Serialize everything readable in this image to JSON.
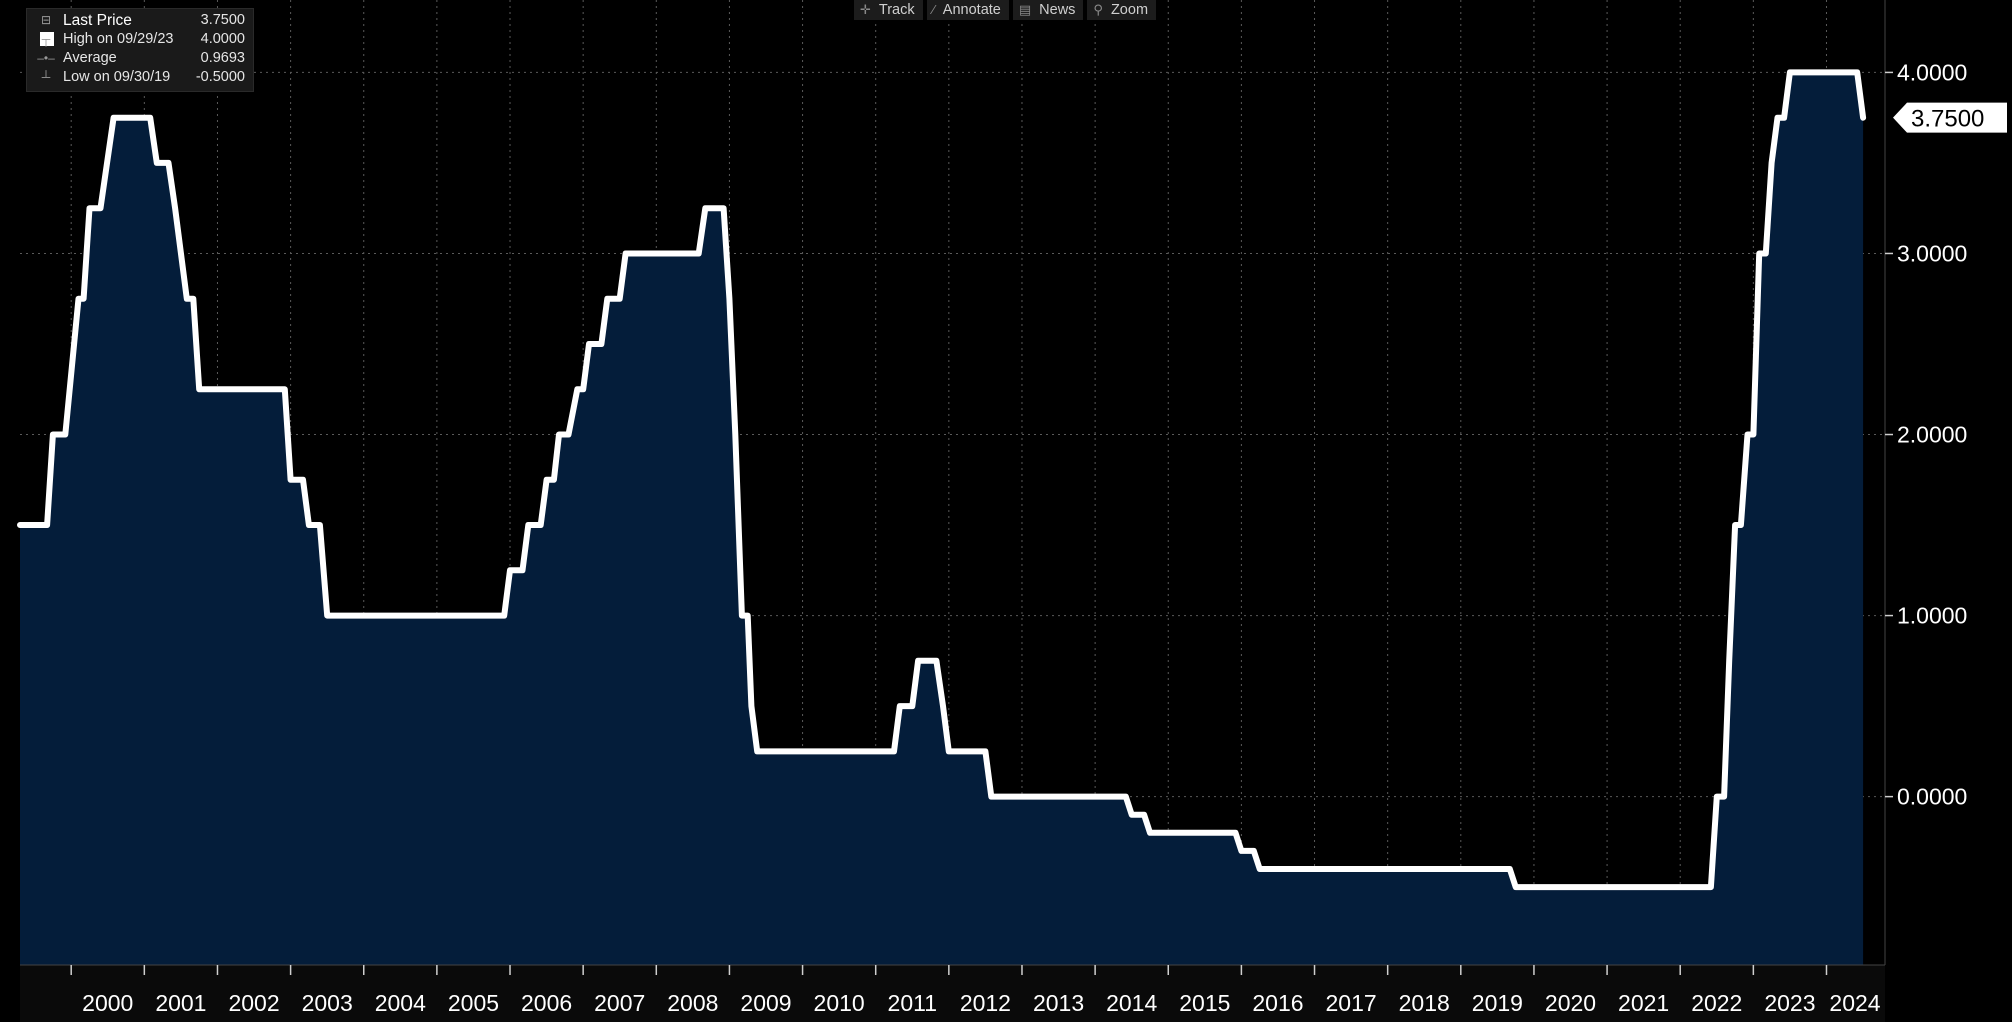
{
  "legend": {
    "items": [
      {
        "label": "Last Price",
        "value": "3.7500",
        "marker": "square-swatch-icon"
      },
      {
        "label": "High on 09/29/23",
        "value": "4.0000",
        "marker": "high-marker-icon"
      },
      {
        "label": "Average",
        "value": "0.9693",
        "marker": "average-marker-icon"
      },
      {
        "label": "Low on 09/30/19",
        "value": "-0.5000",
        "marker": "low-marker-icon"
      }
    ]
  },
  "toolbar": {
    "items": [
      {
        "label": "Track",
        "icon": "crosshair-icon"
      },
      {
        "label": "Annotate",
        "icon": "pencil-icon"
      },
      {
        "label": "News",
        "icon": "news-icon"
      },
      {
        "label": "Zoom",
        "icon": "magnifier-icon"
      }
    ]
  },
  "colors": {
    "background": "#000000",
    "area_fill": "#041d3a",
    "line": "#ffffff",
    "grid": "#5a5a5a",
    "x_label_bg": "#0a0a0a"
  },
  "chart_data": {
    "type": "area",
    "y_ticks": [
      "4.0000",
      "3.0000",
      "2.0000",
      "1.0000",
      "0.0000"
    ],
    "y_tick_values": [
      4.0,
      3.0,
      2.0,
      1.0,
      0.0
    ],
    "last_value_label": "3.7500",
    "x_tick_labels": [
      "2000",
      "2001",
      "2002",
      "2003",
      "2004",
      "2005",
      "2006",
      "2007",
      "2008",
      "2009",
      "2010",
      "2011",
      "2012",
      "2013",
      "2014",
      "2015",
      "2016",
      "2017",
      "2018",
      "2019",
      "2020",
      "2021",
      "2022",
      "2023",
      "2024"
    ],
    "xlim": [
      1999.3,
      2024.8
    ],
    "ylim": [
      -0.93,
      4.4
    ],
    "grid": true,
    "legend_position": "top-left",
    "series": [
      {
        "points": [
          [
            1999.3,
            1.5
          ],
          [
            1999.67,
            1.5
          ],
          [
            1999.75,
            2.0
          ],
          [
            1999.92,
            2.0
          ],
          [
            2000.1,
            2.75
          ],
          [
            2000.17,
            2.75
          ],
          [
            2000.25,
            3.25
          ],
          [
            2000.4,
            3.25
          ],
          [
            2000.58,
            3.75
          ],
          [
            2001.08,
            3.75
          ],
          [
            2001.17,
            3.5
          ],
          [
            2001.33,
            3.5
          ],
          [
            2001.42,
            3.25
          ],
          [
            2001.58,
            2.75
          ],
          [
            2001.67,
            2.75
          ],
          [
            2001.75,
            2.25
          ],
          [
            2002.92,
            2.25
          ],
          [
            2003.0,
            1.75
          ],
          [
            2003.17,
            1.75
          ],
          [
            2003.25,
            1.5
          ],
          [
            2003.4,
            1.5
          ],
          [
            2003.5,
            1.0
          ],
          [
            2005.92,
            1.0
          ],
          [
            2006.0,
            1.25
          ],
          [
            2006.17,
            1.25
          ],
          [
            2006.25,
            1.5
          ],
          [
            2006.42,
            1.5
          ],
          [
            2006.5,
            1.75
          ],
          [
            2006.6,
            1.75
          ],
          [
            2006.67,
            2.0
          ],
          [
            2006.8,
            2.0
          ],
          [
            2006.92,
            2.25
          ],
          [
            2007.0,
            2.25
          ],
          [
            2007.08,
            2.5
          ],
          [
            2007.25,
            2.5
          ],
          [
            2007.33,
            2.75
          ],
          [
            2007.5,
            2.75
          ],
          [
            2007.58,
            3.0
          ],
          [
            2008.58,
            3.0
          ],
          [
            2008.67,
            3.25
          ],
          [
            2008.92,
            3.25
          ],
          [
            2009.0,
            2.75
          ],
          [
            2009.08,
            2.0
          ],
          [
            2009.17,
            1.0
          ],
          [
            2009.25,
            1.0
          ],
          [
            2009.3,
            0.5
          ],
          [
            2009.38,
            0.25
          ],
          [
            2011.25,
            0.25
          ],
          [
            2011.33,
            0.5
          ],
          [
            2011.5,
            0.5
          ],
          [
            2011.58,
            0.75
          ],
          [
            2011.83,
            0.75
          ],
          [
            2011.92,
            0.5
          ],
          [
            2012.0,
            0.25
          ],
          [
            2012.5,
            0.25
          ],
          [
            2012.58,
            0.0
          ],
          [
            2014.42,
            0.0
          ],
          [
            2014.5,
            -0.1
          ],
          [
            2014.67,
            -0.1
          ],
          [
            2014.75,
            -0.2
          ],
          [
            2015.92,
            -0.2
          ],
          [
            2016.0,
            -0.3
          ],
          [
            2016.17,
            -0.3
          ],
          [
            2016.25,
            -0.4
          ],
          [
            2019.67,
            -0.4
          ],
          [
            2019.75,
            -0.5
          ],
          [
            2022.42,
            -0.5
          ],
          [
            2022.5,
            0.0
          ],
          [
            2022.6,
            0.0
          ],
          [
            2022.67,
            0.75
          ],
          [
            2022.75,
            1.5
          ],
          [
            2022.83,
            1.5
          ],
          [
            2022.92,
            2.0
          ],
          [
            2023.0,
            2.0
          ],
          [
            2023.08,
            3.0
          ],
          [
            2023.17,
            3.0
          ],
          [
            2023.25,
            3.5
          ],
          [
            2023.33,
            3.75
          ],
          [
            2023.42,
            3.75
          ],
          [
            2023.5,
            4.0
          ],
          [
            2024.42,
            4.0
          ],
          [
            2024.5,
            3.75
          ]
        ]
      }
    ]
  }
}
